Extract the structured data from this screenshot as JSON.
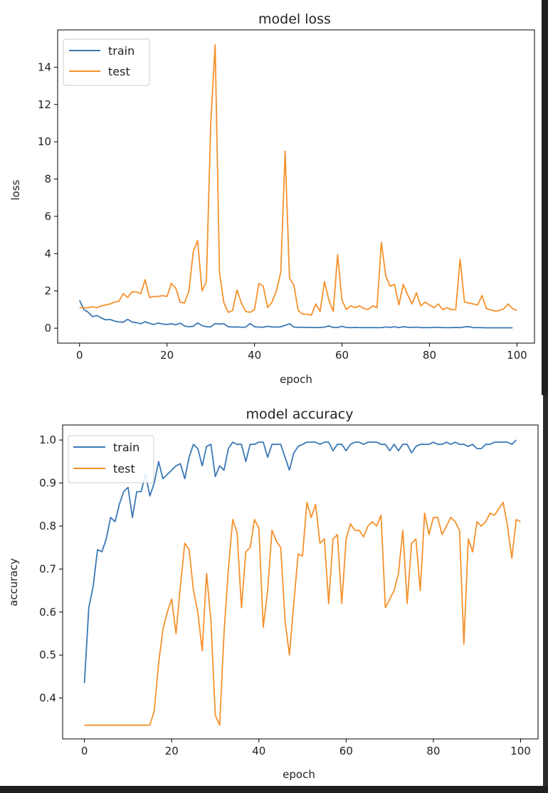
{
  "colors": {
    "train": "#3b78b5",
    "test": "#f5912c"
  },
  "chart_data": [
    {
      "type": "line",
      "title": "model loss",
      "xlabel": "epoch",
      "ylabel": "loss",
      "xlim": [
        -5,
        104
      ],
      "ylim": [
        -0.8,
        16.0
      ],
      "xticks": [
        0,
        20,
        40,
        60,
        80,
        100
      ],
      "yticks": [
        0,
        2,
        4,
        6,
        8,
        10,
        12,
        14
      ],
      "legend": "top-left",
      "series": [
        {
          "name": "train",
          "color": "#3b78b5",
          "values": [
            1.5,
            1.0,
            0.85,
            0.62,
            0.68,
            0.55,
            0.45,
            0.47,
            0.38,
            0.34,
            0.32,
            0.48,
            0.33,
            0.3,
            0.24,
            0.35,
            0.26,
            0.2,
            0.28,
            0.22,
            0.2,
            0.24,
            0.18,
            0.27,
            0.12,
            0.08,
            0.1,
            0.28,
            0.14,
            0.08,
            0.07,
            0.25,
            0.22,
            0.24,
            0.08,
            0.06,
            0.07,
            0.05,
            0.06,
            0.25,
            0.08,
            0.06,
            0.05,
            0.1,
            0.07,
            0.06,
            0.07,
            0.15,
            0.24,
            0.06,
            0.05,
            0.05,
            0.04,
            0.04,
            0.03,
            0.04,
            0.06,
            0.12,
            0.04,
            0.04,
            0.1,
            0.04,
            0.03,
            0.04,
            0.03,
            0.03,
            0.03,
            0.03,
            0.03,
            0.03,
            0.07,
            0.04,
            0.08,
            0.03,
            0.08,
            0.05,
            0.04,
            0.06,
            0.03,
            0.03,
            0.03,
            0.04,
            0.05,
            0.03,
            0.03,
            0.03,
            0.04,
            0.03,
            0.07,
            0.08,
            0.03,
            0.03,
            0.03,
            0.02,
            0.02,
            0.02,
            0.02,
            0.02,
            0.02,
            0.02
          ]
        },
        {
          "name": "test",
          "color": "#f5912c",
          "values": [
            1.1,
            1.1,
            1.1,
            1.15,
            1.1,
            1.2,
            1.25,
            1.3,
            1.4,
            1.45,
            1.85,
            1.65,
            1.95,
            1.95,
            1.85,
            2.6,
            1.65,
            1.7,
            1.7,
            1.75,
            1.7,
            2.4,
            2.15,
            1.4,
            1.35,
            2.0,
            4.1,
            4.7,
            2.0,
            2.5,
            11.0,
            15.2,
            3.0,
            1.35,
            0.85,
            0.95,
            2.05,
            1.35,
            0.9,
            0.85,
            1.0,
            2.4,
            2.25,
            1.1,
            1.4,
            2.0,
            3.0,
            9.5,
            2.7,
            2.3,
            0.95,
            0.75,
            0.75,
            0.7,
            1.3,
            0.9,
            2.5,
            1.5,
            0.9,
            3.95,
            1.5,
            1.0,
            1.2,
            1.1,
            1.2,
            1.05,
            1.0,
            1.2,
            1.1,
            4.6,
            2.8,
            2.25,
            2.35,
            1.25,
            2.35,
            1.8,
            1.3,
            1.9,
            1.2,
            1.4,
            1.25,
            1.1,
            1.3,
            1.0,
            1.1,
            1.0,
            1.0,
            3.7,
            1.4,
            1.35,
            1.3,
            1.25,
            1.75,
            1.05,
            0.98,
            0.92,
            0.95,
            1.05,
            1.3,
            1.05,
            0.95
          ]
        }
      ]
    },
    {
      "type": "line",
      "title": "model accuracy",
      "xlabel": "epoch",
      "ylabel": "accuracy",
      "xlim": [
        -5,
        104
      ],
      "ylim": [
        0.305,
        1.035
      ],
      "xticks": [
        0,
        20,
        40,
        60,
        80,
        100
      ],
      "yticks": [
        0.4,
        0.5,
        0.6,
        0.7,
        0.8,
        0.9,
        1.0
      ],
      "legend": "top-left",
      "series": [
        {
          "name": "train",
          "color": "#3b78b5",
          "values": [
            0.435,
            0.61,
            0.66,
            0.745,
            0.74,
            0.77,
            0.82,
            0.81,
            0.85,
            0.88,
            0.89,
            0.82,
            0.88,
            0.88,
            0.92,
            0.87,
            0.9,
            0.95,
            0.91,
            0.92,
            0.93,
            0.94,
            0.945,
            0.91,
            0.96,
            0.99,
            0.98,
            0.94,
            0.985,
            0.99,
            0.915,
            0.94,
            0.93,
            0.98,
            0.995,
            0.99,
            0.99,
            0.95,
            0.99,
            0.99,
            0.995,
            0.995,
            0.96,
            0.99,
            0.99,
            0.99,
            0.96,
            0.93,
            0.97,
            0.985,
            0.99,
            0.995,
            0.995,
            0.995,
            0.99,
            0.995,
            0.995,
            0.975,
            0.99,
            0.99,
            0.975,
            0.99,
            0.995,
            0.995,
            0.99,
            0.995,
            0.995,
            0.995,
            0.99,
            0.99,
            0.975,
            0.99,
            0.975,
            0.99,
            0.99,
            0.97,
            0.985,
            0.99,
            0.99,
            0.99,
            0.995,
            0.99,
            0.99,
            0.995,
            0.99,
            0.995,
            0.99,
            0.99,
            0.985,
            0.99,
            0.98,
            0.98,
            0.99,
            0.99,
            0.995,
            0.995,
            0.995,
            0.995,
            0.99,
            1.0
          ]
        },
        {
          "name": "test",
          "color": "#f5912c",
          "values": [
            0.337,
            0.337,
            0.337,
            0.337,
            0.337,
            0.337,
            0.337,
            0.337,
            0.337,
            0.337,
            0.337,
            0.337,
            0.337,
            0.337,
            0.337,
            0.337,
            0.37,
            0.48,
            0.56,
            0.6,
            0.63,
            0.55,
            0.66,
            0.76,
            0.745,
            0.65,
            0.6,
            0.51,
            0.69,
            0.58,
            0.36,
            0.337,
            0.55,
            0.7,
            0.815,
            0.785,
            0.61,
            0.74,
            0.75,
            0.815,
            0.795,
            0.565,
            0.65,
            0.79,
            0.765,
            0.75,
            0.58,
            0.5,
            0.62,
            0.735,
            0.73,
            0.855,
            0.82,
            0.85,
            0.76,
            0.77,
            0.62,
            0.77,
            0.78,
            0.62,
            0.77,
            0.805,
            0.79,
            0.79,
            0.775,
            0.8,
            0.81,
            0.8,
            0.825,
            0.61,
            0.63,
            0.65,
            0.69,
            0.79,
            0.62,
            0.76,
            0.77,
            0.65,
            0.83,
            0.78,
            0.82,
            0.82,
            0.78,
            0.8,
            0.82,
            0.81,
            0.79,
            0.525,
            0.77,
            0.74,
            0.81,
            0.8,
            0.81,
            0.83,
            0.825,
            0.84,
            0.855,
            0.8,
            0.725,
            0.815,
            0.81
          ]
        }
      ]
    }
  ]
}
